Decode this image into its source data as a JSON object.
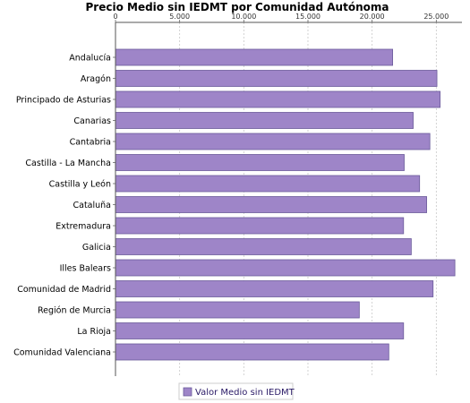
{
  "chart_data": {
    "type": "bar",
    "orientation": "horizontal",
    "title": "Precio Medio sin IEDMT por Comunidad Autónoma",
    "categories": [
      "Andalucía",
      "Aragón",
      "Principado de Asturias",
      "Canarias",
      "Cantabria",
      "Castilla - La Mancha",
      "Castilla y León",
      "Cataluña",
      "Extremadura",
      "Galicia",
      "Illes Balears",
      "Comunidad de Madrid",
      "Región de Murcia",
      "La Rioja",
      "Comunidad Valenciana"
    ],
    "series": [
      {
        "name": "Valor Medio sin IEDMT",
        "color": "#9e85c8",
        "values": [
          21600,
          25050,
          25300,
          23200,
          24500,
          22500,
          23700,
          24250,
          22450,
          23050,
          26450,
          24750,
          19000,
          22450,
          21300
        ]
      }
    ],
    "xticks": [
      "0",
      "5.000",
      "10.000",
      "15.000",
      "20.000",
      "25.000"
    ],
    "xlim": [
      0,
      27000
    ],
    "grid": true,
    "legend_position": "bottom-center"
  }
}
